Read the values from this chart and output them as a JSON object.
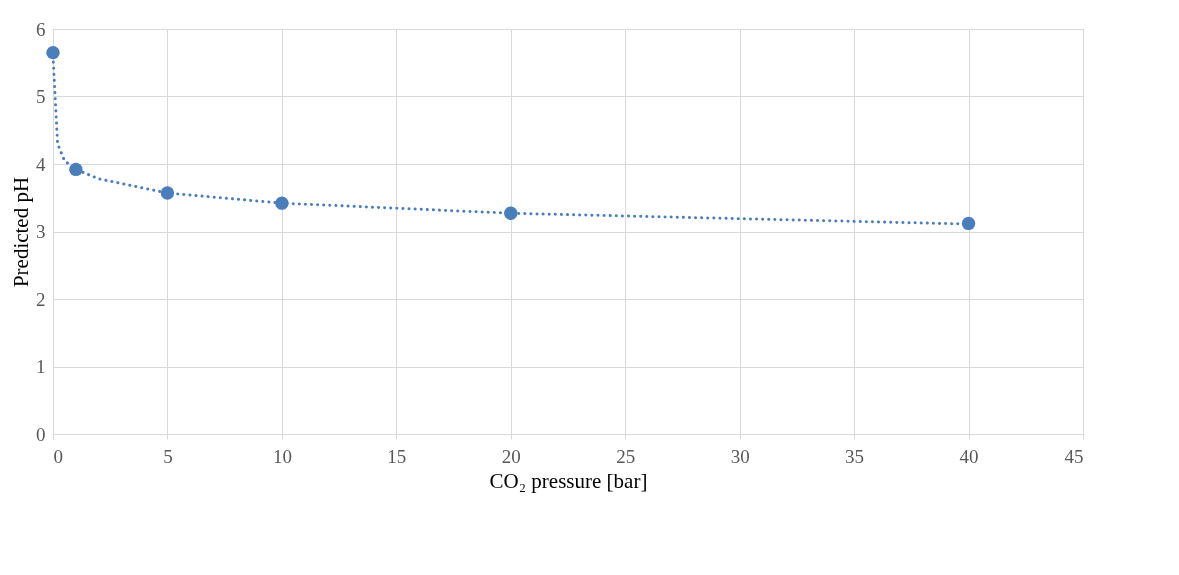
{
  "chart_data": {
    "type": "scatter",
    "xlabel": "CO₂ pressure [bar]",
    "ylabel": "Predicted pH",
    "xlim": [
      0,
      45
    ],
    "xticks": [
      0,
      5,
      10,
      15,
      20,
      25,
      30,
      35,
      40,
      45
    ],
    "ylim": [
      0,
      6
    ],
    "yticks": [
      0,
      1,
      2,
      3,
      4,
      5,
      6
    ],
    "grid": true,
    "series": [
      {
        "type": "line",
        "line_style": "dotted",
        "marker": "none",
        "color": "#4a7ebb",
        "x": [
          0,
          0.2,
          0.5,
          1,
          2,
          5,
          10,
          20,
          40
        ],
        "values": [
          5.6,
          4.3,
          4.05,
          3.92,
          3.78,
          3.57,
          3.42,
          3.27,
          3.11
        ]
      },
      {
        "marker": "circle",
        "color": "#4a7ebb",
        "x": [
          0,
          1,
          5,
          10,
          20,
          40
        ],
        "values": [
          5.65,
          3.92,
          3.57,
          3.42,
          3.27,
          3.12
        ]
      }
    ]
  }
}
